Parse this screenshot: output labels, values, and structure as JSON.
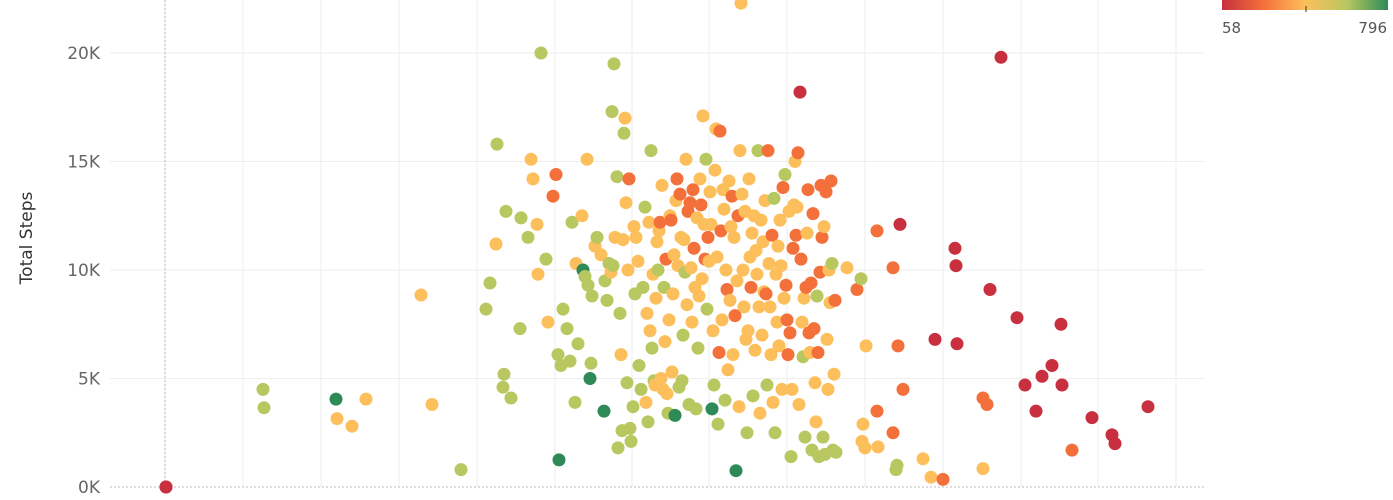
{
  "chart_data": {
    "type": "scatter",
    "ylabel": "Total Steps",
    "xlim": [
      0,
      1393
    ],
    "ylim": [
      0,
      23000
    ],
    "yticks": [
      {
        "value": 0,
        "label": "0K"
      },
      {
        "value": 5000,
        "label": "5K"
      },
      {
        "value": 10000,
        "label": "10K"
      },
      {
        "value": 15000,
        "label": "15K"
      },
      {
        "value": 20000,
        "label": "20K"
      }
    ],
    "xgrid": [
      165,
      243,
      321,
      399,
      477,
      555,
      632,
      709,
      787,
      865,
      943,
      1021,
      1098,
      1176
    ],
    "grid": true,
    "color_legend": {
      "min_label": "58",
      "max_label": "796",
      "colors": [
        "#c8303f",
        "#f3703a",
        "#fdbf5c",
        "#b9c760",
        "#2e8b57"
      ]
    },
    "points": [
      [
        166,
        0,
        1
      ],
      [
        166,
        0,
        1
      ],
      [
        263,
        4500,
        4
      ],
      [
        264,
        3650,
        4
      ],
      [
        336,
        4050,
        5
      ],
      [
        337,
        3150,
        3
      ],
      [
        352,
        2800,
        3
      ],
      [
        366,
        4050,
        3
      ],
      [
        432,
        3800,
        3
      ],
      [
        421,
        8850,
        3
      ],
      [
        461,
        800,
        4
      ],
      [
        486,
        8200,
        4
      ],
      [
        490,
        9400,
        4
      ],
      [
        496,
        11200,
        3
      ],
      [
        497,
        15800,
        4
      ],
      [
        503,
        4600,
        4
      ],
      [
        504,
        5200,
        4
      ],
      [
        506,
        12700,
        4
      ],
      [
        511,
        4100,
        4
      ],
      [
        520,
        7300,
        4
      ],
      [
        521,
        12400,
        4
      ],
      [
        528,
        11500,
        4
      ],
      [
        531,
        15100,
        3
      ],
      [
        533,
        14200,
        3
      ],
      [
        537,
        12100,
        3
      ],
      [
        538,
        9800,
        3
      ],
      [
        541,
        20000,
        4
      ],
      [
        546,
        10500,
        4
      ],
      [
        548,
        7600,
        3
      ],
      [
        553,
        13400,
        2
      ],
      [
        556,
        14400,
        2
      ],
      [
        558,
        6100,
        4
      ],
      [
        559,
        1250,
        5
      ],
      [
        561,
        5600,
        4
      ],
      [
        563,
        8200,
        4
      ],
      [
        567,
        7300,
        4
      ],
      [
        570,
        5800,
        4
      ],
      [
        572,
        12200,
        4
      ],
      [
        575,
        3900,
        4
      ],
      [
        576,
        10300,
        3
      ],
      [
        578,
        6600,
        4
      ],
      [
        582,
        12500,
        3
      ],
      [
        583,
        10000,
        5
      ],
      [
        585,
        9700,
        4
      ],
      [
        587,
        15100,
        3
      ],
      [
        588,
        9300,
        4
      ],
      [
        590,
        5000,
        5
      ],
      [
        591,
        5700,
        4
      ],
      [
        592,
        8800,
        4
      ],
      [
        595,
        11100,
        3
      ],
      [
        597,
        11500,
        4
      ],
      [
        601,
        10700,
        3
      ],
      [
        604,
        3500,
        5
      ],
      [
        605,
        9500,
        4
      ],
      [
        607,
        8600,
        4
      ],
      [
        609,
        10300,
        4
      ],
      [
        611,
        9900,
        3
      ],
      [
        612,
        17300,
        4
      ],
      [
        613,
        10200,
        4
      ],
      [
        614,
        19500,
        4
      ],
      [
        615,
        11500,
        3
      ],
      [
        617,
        14300,
        4
      ],
      [
        618,
        1800,
        4
      ],
      [
        620,
        8000,
        4
      ],
      [
        621,
        6100,
        3
      ],
      [
        622,
        2600,
        4
      ],
      [
        623,
        11400,
        3
      ],
      [
        624,
        16300,
        4
      ],
      [
        625,
        17000,
        3
      ],
      [
        626,
        13100,
        3
      ],
      [
        627,
        4800,
        4
      ],
      [
        628,
        10000,
        3
      ],
      [
        629,
        14200,
        2
      ],
      [
        630,
        2700,
        4
      ],
      [
        631,
        2100,
        4
      ],
      [
        633,
        3700,
        4
      ],
      [
        634,
        12000,
        3
      ],
      [
        635,
        8900,
        4
      ],
      [
        636,
        11500,
        3
      ],
      [
        638,
        10400,
        3
      ],
      [
        639,
        5600,
        4
      ],
      [
        641,
        4500,
        4
      ],
      [
        643,
        9200,
        4
      ],
      [
        645,
        12900,
        4
      ],
      [
        646,
        3900,
        3
      ],
      [
        647,
        8000,
        3
      ],
      [
        648,
        3000,
        4
      ],
      [
        649,
        12200,
        3
      ],
      [
        650,
        7200,
        3
      ],
      [
        651,
        15500,
        4
      ],
      [
        652,
        6400,
        4
      ],
      [
        653,
        9800,
        3
      ],
      [
        654,
        4900,
        4
      ],
      [
        655,
        4700,
        3
      ],
      [
        656,
        8700,
        3
      ],
      [
        657,
        11300,
        3
      ],
      [
        658,
        10000,
        4
      ],
      [
        659,
        11800,
        3
      ],
      [
        660,
        12200,
        2
      ],
      [
        661,
        5000,
        3
      ],
      [
        662,
        13900,
        3
      ],
      [
        663,
        4500,
        3
      ],
      [
        664,
        9200,
        4
      ],
      [
        665,
        6700,
        3
      ],
      [
        666,
        10500,
        2
      ],
      [
        667,
        4300,
        3
      ],
      [
        668,
        3400,
        4
      ],
      [
        669,
        7700,
        3
      ],
      [
        670,
        12500,
        3
      ],
      [
        671,
        12300,
        2
      ],
      [
        672,
        5300,
        3
      ],
      [
        673,
        8900,
        3
      ],
      [
        674,
        10700,
        3
      ],
      [
        675,
        3300,
        5
      ],
      [
        676,
        13200,
        3
      ],
      [
        677,
        14200,
        2
      ],
      [
        678,
        10200,
        3
      ],
      [
        679,
        4600,
        4
      ],
      [
        680,
        13500,
        2
      ],
      [
        681,
        11500,
        3
      ],
      [
        682,
        4900,
        4
      ],
      [
        683,
        7000,
        4
      ],
      [
        684,
        11400,
        3
      ],
      [
        685,
        9900,
        4
      ],
      [
        686,
        15100,
        3
      ],
      [
        687,
        8400,
        3
      ],
      [
        688,
        12700,
        2
      ],
      [
        689,
        3800,
        4
      ],
      [
        690,
        13100,
        2
      ],
      [
        691,
        10100,
        3
      ],
      [
        692,
        7600,
        3
      ],
      [
        693,
        13700,
        2
      ],
      [
        694,
        11000,
        2
      ],
      [
        695,
        9200,
        3
      ],
      [
        696,
        3600,
        4
      ],
      [
        697,
        12400,
        3
      ],
      [
        698,
        6400,
        4
      ],
      [
        699,
        8800,
        3
      ],
      [
        700,
        14200,
        3
      ],
      [
        701,
        13000,
        2
      ],
      [
        702,
        9600,
        3
      ],
      [
        703,
        17100,
        3
      ],
      [
        704,
        12100,
        3
      ],
      [
        705,
        10500,
        2
      ],
      [
        706,
        15100,
        4
      ],
      [
        707,
        8200,
        4
      ],
      [
        708,
        11500,
        2
      ],
      [
        709,
        10400,
        3
      ],
      [
        710,
        13600,
        3
      ],
      [
        711,
        12100,
        3
      ],
      [
        712,
        3600,
        5
      ],
      [
        713,
        7200,
        3
      ],
      [
        714,
        4700,
        4
      ],
      [
        715,
        14600,
        3
      ],
      [
        716,
        16500,
        3
      ],
      [
        717,
        10600,
        3
      ],
      [
        718,
        2900,
        4
      ],
      [
        719,
        6200,
        2
      ],
      [
        720,
        16400,
        2
      ],
      [
        721,
        11800,
        2
      ],
      [
        722,
        7700,
        3
      ],
      [
        723,
        13700,
        3
      ],
      [
        724,
        12800,
        3
      ],
      [
        725,
        4000,
        4
      ],
      [
        726,
        10000,
        3
      ],
      [
        727,
        9100,
        2
      ],
      [
        728,
        5400,
        3
      ],
      [
        729,
        14100,
        3
      ],
      [
        730,
        8600,
        3
      ],
      [
        731,
        12000,
        3
      ],
      [
        732,
        13400,
        2
      ],
      [
        733,
        6100,
        3
      ],
      [
        734,
        11500,
        3
      ],
      [
        735,
        7900,
        2
      ],
      [
        736,
        750,
        5
      ],
      [
        737,
        9500,
        3
      ],
      [
        738,
        12500,
        2
      ],
      [
        739,
        3700,
        3
      ],
      [
        740,
        15500,
        3
      ],
      [
        741,
        22300,
        3
      ],
      [
        742,
        13500,
        3
      ],
      [
        743,
        10000,
        3
      ],
      [
        744,
        8300,
        3
      ],
      [
        745,
        12700,
        3
      ],
      [
        746,
        6800,
        3
      ],
      [
        747,
        2500,
        4
      ],
      [
        748,
        7200,
        3
      ],
      [
        749,
        14200,
        3
      ],
      [
        750,
        10600,
        3
      ],
      [
        751,
        9200,
        2
      ],
      [
        752,
        11700,
        3
      ],
      [
        753,
        4200,
        4
      ],
      [
        754,
        12500,
        3
      ],
      [
        755,
        6300,
        3
      ],
      [
        756,
        10900,
        3
      ],
      [
        757,
        9800,
        3
      ],
      [
        758,
        15500,
        4
      ],
      [
        759,
        8300,
        3
      ],
      [
        760,
        3400,
        3
      ],
      [
        761,
        12300,
        3
      ],
      [
        762,
        7000,
        3
      ],
      [
        763,
        11300,
        3
      ],
      [
        764,
        9000,
        3
      ],
      [
        765,
        13200,
        3
      ],
      [
        766,
        8900,
        2
      ],
      [
        767,
        4700,
        4
      ],
      [
        768,
        15500,
        2
      ],
      [
        769,
        10300,
        3
      ],
      [
        770,
        8300,
        3
      ],
      [
        771,
        6100,
        3
      ],
      [
        772,
        11600,
        2
      ],
      [
        773,
        3900,
        3
      ],
      [
        774,
        13300,
        4
      ],
      [
        775,
        2500,
        4
      ],
      [
        776,
        9800,
        3
      ],
      [
        777,
        7600,
        3
      ],
      [
        778,
        11100,
        3
      ],
      [
        779,
        6500,
        3
      ],
      [
        780,
        12300,
        3
      ],
      [
        781,
        10200,
        3
      ],
      [
        782,
        4500,
        3
      ],
      [
        783,
        13800,
        2
      ],
      [
        784,
        8700,
        3
      ],
      [
        785,
        14400,
        4
      ],
      [
        786,
        9300,
        2
      ],
      [
        787,
        7700,
        2
      ],
      [
        788,
        6100,
        2
      ],
      [
        789,
        12700,
        3
      ],
      [
        790,
        7100,
        2
      ],
      [
        791,
        1400,
        4
      ],
      [
        792,
        4500,
        3
      ],
      [
        793,
        11000,
        2
      ],
      [
        794,
        13000,
        3
      ],
      [
        795,
        15000,
        3
      ],
      [
        796,
        11600,
        2
      ],
      [
        797,
        12900,
        3
      ],
      [
        798,
        15400,
        2
      ],
      [
        799,
        3800,
        3
      ],
      [
        800,
        18200,
        1
      ],
      [
        801,
        10500,
        2
      ],
      [
        802,
        7600,
        3
      ],
      [
        803,
        6000,
        4
      ],
      [
        804,
        8700,
        3
      ],
      [
        805,
        2300,
        4
      ],
      [
        806,
        9200,
        2
      ],
      [
        807,
        11700,
        3
      ],
      [
        808,
        13700,
        2
      ],
      [
        809,
        7100,
        2
      ],
      [
        810,
        6200,
        3
      ],
      [
        811,
        9400,
        2
      ],
      [
        812,
        1700,
        4
      ],
      [
        813,
        12600,
        2
      ],
      [
        814,
        7300,
        2
      ],
      [
        815,
        4800,
        3
      ],
      [
        816,
        3000,
        3
      ],
      [
        817,
        8800,
        4
      ],
      [
        818,
        6200,
        2
      ],
      [
        819,
        1400,
        4
      ],
      [
        820,
        9900,
        2
      ],
      [
        821,
        13900,
        2
      ],
      [
        822,
        11500,
        2
      ],
      [
        823,
        2300,
        4
      ],
      [
        824,
        12000,
        3
      ],
      [
        825,
        1500,
        4
      ],
      [
        826,
        13600,
        2
      ],
      [
        827,
        6800,
        3
      ],
      [
        828,
        4500,
        3
      ],
      [
        829,
        10000,
        3
      ],
      [
        830,
        8500,
        3
      ],
      [
        831,
        14100,
        2
      ],
      [
        832,
        10300,
        4
      ],
      [
        833,
        1700,
        4
      ],
      [
        834,
        5200,
        3
      ],
      [
        835,
        8600,
        2
      ],
      [
        836,
        1600,
        4
      ],
      [
        847,
        10100,
        3
      ],
      [
        857,
        9100,
        2
      ],
      [
        861,
        9600,
        4
      ],
      [
        862,
        2100,
        3
      ],
      [
        863,
        2900,
        3
      ],
      [
        865,
        1800,
        3
      ],
      [
        866,
        6500,
        3
      ],
      [
        877,
        11800,
        2
      ],
      [
        877,
        3500,
        2
      ],
      [
        878,
        1850,
        3
      ],
      [
        893,
        10100,
        2
      ],
      [
        893,
        2500,
        2
      ],
      [
        896,
        800,
        4
      ],
      [
        897,
        1000,
        4
      ],
      [
        898,
        6500,
        2
      ],
      [
        900,
        12100,
        1
      ],
      [
        903,
        4500,
        2
      ],
      [
        923,
        1300,
        3
      ],
      [
        931,
        450,
        3
      ],
      [
        935,
        6800,
        1
      ],
      [
        943,
        350,
        2
      ],
      [
        955,
        11000,
        1
      ],
      [
        956,
        10200,
        1
      ],
      [
        957,
        6600,
        1
      ],
      [
        983,
        4100,
        2
      ],
      [
        983,
        850,
        3
      ],
      [
        987,
        3800,
        2
      ],
      [
        990,
        9100,
        1
      ],
      [
        1001,
        19800,
        1
      ],
      [
        1017,
        7800,
        1
      ],
      [
        1025,
        4700,
        1
      ],
      [
        1036,
        3500,
        1
      ],
      [
        1042,
        5100,
        1
      ],
      [
        1052,
        5600,
        1
      ],
      [
        1061,
        7500,
        1
      ],
      [
        1062,
        4700,
        1
      ],
      [
        1072,
        1700,
        2
      ],
      [
        1092,
        3200,
        1
      ],
      [
        1112,
        2400,
        1
      ],
      [
        1115,
        2000,
        1
      ],
      [
        1148,
        3700,
        1
      ]
    ]
  }
}
